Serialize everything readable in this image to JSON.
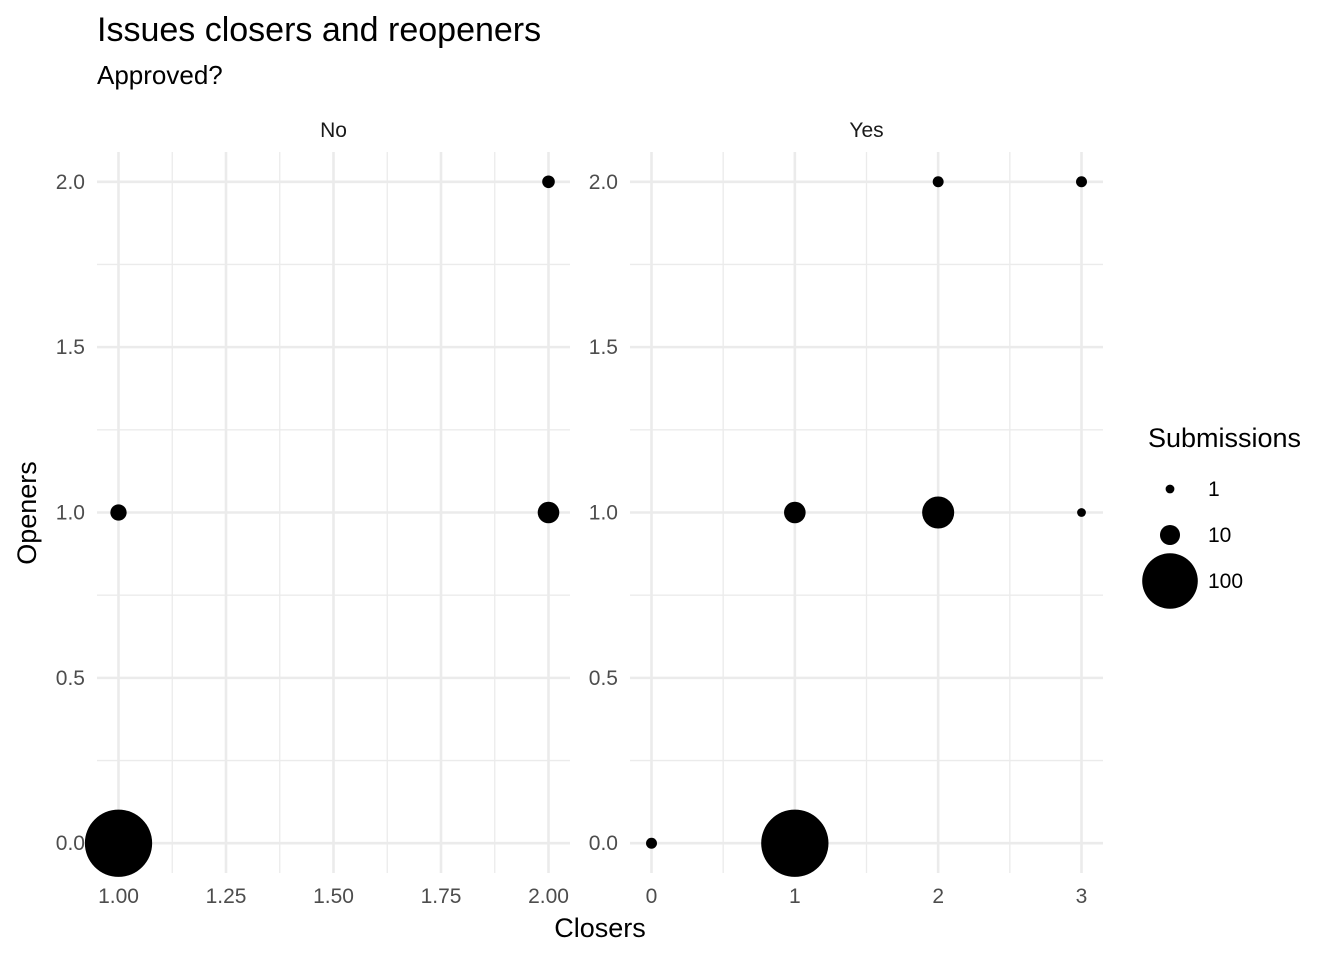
{
  "chart_data": {
    "type": "scatter",
    "title": "Issues closers and reopeners",
    "subtitle": "Approved?",
    "xlabel": "Closers",
    "ylabel": "Openers",
    "legend": {
      "title": "Submissions",
      "position": "right",
      "breaks": [
        {
          "label": "1",
          "value": 1
        },
        {
          "label": "10",
          "value": 10
        },
        {
          "label": "100",
          "value": 100
        }
      ]
    },
    "grid": true,
    "ylim": [
      -0.09,
      2.09
    ],
    "y_ticks": [
      {
        "value": 0.0,
        "label": "0.0"
      },
      {
        "value": 0.5,
        "label": "0.5"
      },
      {
        "value": 1.0,
        "label": "1.0"
      },
      {
        "value": 1.5,
        "label": "1.5"
      },
      {
        "value": 2.0,
        "label": "2.0"
      }
    ],
    "panels": [
      {
        "label": "No",
        "xlim": [
          0.95,
          2.05
        ],
        "x_ticks": [
          {
            "value": 1.0,
            "label": "1.00"
          },
          {
            "value": 1.25,
            "label": "1.25"
          },
          {
            "value": 1.5,
            "label": "1.50"
          },
          {
            "value": 1.75,
            "label": "1.75"
          },
          {
            "value": 2.0,
            "label": "2.00"
          }
        ],
        "x_minor": [
          1.125,
          1.375,
          1.625,
          1.875
        ],
        "points": [
          {
            "x": 1,
            "y": 0,
            "n": 150
          },
          {
            "x": 1,
            "y": 1,
            "n": 6
          },
          {
            "x": 2,
            "y": 1,
            "n": 12
          },
          {
            "x": 2,
            "y": 2,
            "n": 3
          }
        ]
      },
      {
        "label": "Yes",
        "xlim": [
          -0.15,
          3.15
        ],
        "x_ticks": [
          {
            "value": 0,
            "label": "0"
          },
          {
            "value": 1,
            "label": "1"
          },
          {
            "value": 2,
            "label": "2"
          },
          {
            "value": 3,
            "label": "3"
          }
        ],
        "x_minor": [
          0.5,
          1.5,
          2.5
        ],
        "points": [
          {
            "x": 0,
            "y": 0,
            "n": 2
          },
          {
            "x": 1,
            "y": 0,
            "n": 150
          },
          {
            "x": 1,
            "y": 1,
            "n": 12
          },
          {
            "x": 2,
            "y": 1,
            "n": 30
          },
          {
            "x": 2,
            "y": 2,
            "n": 2
          },
          {
            "x": 3,
            "y": 2,
            "n": 2
          },
          {
            "x": 3,
            "y": 1,
            "n": 1
          }
        ]
      }
    ]
  }
}
